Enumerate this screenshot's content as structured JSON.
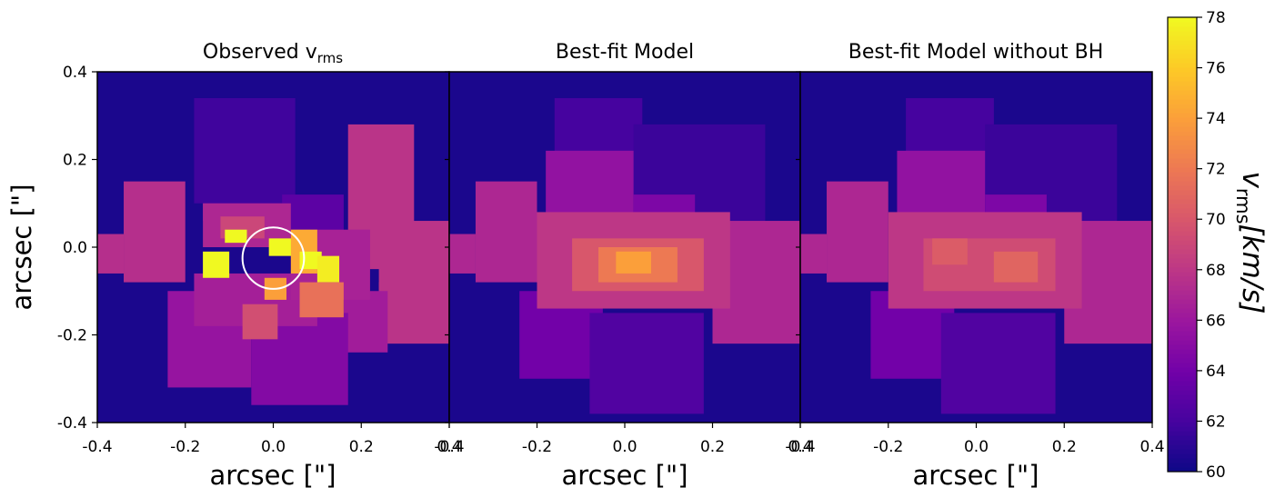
{
  "chart_data": [
    {
      "type": "heatmap",
      "title": "Observed v",
      "title_sub": "rms",
      "xlabel": "arcsec [\"]",
      "ylabel": "arcsec [\"]",
      "xlim": [
        -0.4,
        0.4
      ],
      "ylim": [
        -0.4,
        0.4
      ],
      "xticks": [
        "-0.4",
        "-0.2",
        "0.0",
        "0.2",
        "0.4"
      ],
      "yticks": [
        "0.4",
        "0.2",
        "0.0",
        "-0.2",
        "-0.4"
      ],
      "background_value": 60.5,
      "regions": [
        {
          "x0": -0.16,
          "x1": 0.04,
          "y0": 0.06,
          "y1": 0.24,
          "v": 64.5
        },
        {
          "x0": -0.34,
          "x1": -0.2,
          "y0": -0.08,
          "y1": 0.15,
          "v": 67.5
        },
        {
          "x0": -0.4,
          "x1": -0.34,
          "y0": -0.06,
          "y1": 0.03,
          "v": 67.5
        },
        {
          "x0": -0.18,
          "x1": 0.05,
          "y0": 0.1,
          "y1": 0.34,
          "v": 61.8
        },
        {
          "x0": 0.02,
          "x1": 0.16,
          "y0": 0.0,
          "y1": 0.12,
          "v": 63.0
        },
        {
          "x0": 0.17,
          "x1": 0.32,
          "y0": -0.05,
          "y1": 0.28,
          "v": 67.8
        },
        {
          "x0": 0.24,
          "x1": 0.4,
          "y0": -0.1,
          "y1": 0.06,
          "v": 67.8
        },
        {
          "x0": 0.24,
          "x1": 0.4,
          "y0": -0.22,
          "y1": -0.08,
          "v": 67.8
        },
        {
          "x0": 0.16,
          "x1": 0.26,
          "y0": -0.24,
          "y1": -0.1,
          "v": 66.3
        },
        {
          "x0": -0.24,
          "x1": -0.05,
          "y0": -0.32,
          "y1": -0.1,
          "v": 65.7
        },
        {
          "x0": -0.05,
          "x1": 0.17,
          "y0": -0.36,
          "y1": -0.15,
          "v": 64.8
        },
        {
          "x0": -0.16,
          "x1": 0.04,
          "y0": 0.0,
          "y1": 0.1,
          "v": 67.0
        },
        {
          "x0": -0.18,
          "x1": 0.1,
          "y0": -0.18,
          "y1": -0.06,
          "v": 66.5
        },
        {
          "x0": 0.04,
          "x1": 0.22,
          "y0": -0.12,
          "y1": 0.04,
          "v": 66.7
        },
        {
          "x0": -0.12,
          "x1": -0.02,
          "y0": 0.02,
          "y1": 0.07,
          "v": 69.0
        },
        {
          "x0": -0.11,
          "x1": -0.06,
          "y0": 0.01,
          "y1": 0.04,
          "v": 78.0
        },
        {
          "x0": -0.16,
          "x1": -0.1,
          "y0": -0.07,
          "y1": -0.01,
          "v": 78.0
        },
        {
          "x0": -0.01,
          "x1": 0.06,
          "y0": -0.02,
          "y1": 0.02,
          "v": 78.0
        },
        {
          "x0": 0.04,
          "x1": 0.1,
          "y0": -0.06,
          "y1": 0.04,
          "v": 74.5
        },
        {
          "x0": 0.06,
          "x1": 0.11,
          "y0": -0.05,
          "y1": -0.01,
          "v": 78.0
        },
        {
          "x0": 0.1,
          "x1": 0.15,
          "y0": -0.08,
          "y1": -0.02,
          "v": 77.5
        },
        {
          "x0": 0.06,
          "x1": 0.16,
          "y0": -0.16,
          "y1": -0.08,
          "v": 71.5
        },
        {
          "x0": -0.07,
          "x1": 0.01,
          "y0": -0.21,
          "y1": -0.13,
          "v": 69.5
        },
        {
          "x0": -0.02,
          "x1": 0.03,
          "y0": -0.12,
          "y1": -0.07,
          "v": 74.0
        }
      ],
      "annotations": [
        {
          "shape": "circle",
          "cx": 0.0,
          "cy": -0.025,
          "r": 0.07,
          "color": "#ffffff"
        }
      ]
    },
    {
      "type": "heatmap",
      "title": "Best-fit Model",
      "xlabel": "arcsec [\"]",
      "xlim": [
        -0.4,
        0.4
      ],
      "ylim": [
        -0.4,
        0.4
      ],
      "xticks": [
        "-0.4",
        "-0.2",
        "0.0",
        "0.2",
        "0.4"
      ],
      "background_value": 60.5,
      "regions": [
        {
          "x0": -0.16,
          "x1": 0.04,
          "y0": 0.08,
          "y1": 0.34,
          "v": 62.0
        },
        {
          "x0": 0.02,
          "x1": 0.32,
          "y0": 0.04,
          "y1": 0.28,
          "v": 61.6
        },
        {
          "x0": -0.34,
          "x1": -0.2,
          "y0": -0.08,
          "y1": 0.15,
          "v": 67.0
        },
        {
          "x0": -0.4,
          "x1": -0.34,
          "y0": -0.06,
          "y1": 0.03,
          "v": 67.0
        },
        {
          "x0": -0.18,
          "x1": 0.02,
          "y0": 0.04,
          "y1": 0.22,
          "v": 65.5
        },
        {
          "x0": 0.02,
          "x1": 0.16,
          "y0": 0.0,
          "y1": 0.12,
          "v": 64.5
        },
        {
          "x0": 0.2,
          "x1": 0.4,
          "y0": -0.22,
          "y1": 0.06,
          "v": 67.0
        },
        {
          "x0": -0.24,
          "x1": -0.05,
          "y0": -0.3,
          "y1": -0.1,
          "v": 64.0
        },
        {
          "x0": -0.08,
          "x1": 0.18,
          "y0": -0.38,
          "y1": -0.15,
          "v": 62.5
        },
        {
          "x0": -0.2,
          "x1": 0.24,
          "y0": -0.14,
          "y1": 0.08,
          "v": 68.0
        },
        {
          "x0": -0.12,
          "x1": 0.18,
          "y0": -0.1,
          "y1": 0.02,
          "v": 70.0
        },
        {
          "x0": -0.06,
          "x1": 0.12,
          "y0": -0.08,
          "y1": 0.0,
          "v": 72.0
        },
        {
          "x0": -0.02,
          "x1": 0.06,
          "y0": -0.06,
          "y1": -0.01,
          "v": 74.0
        }
      ]
    },
    {
      "type": "heatmap",
      "title": "Best-fit Model without BH",
      "xlabel": "arcsec [\"]",
      "xlim": [
        -0.4,
        0.4
      ],
      "ylim": [
        -0.4,
        0.4
      ],
      "xticks": [
        "-0.4",
        "-0.2",
        "0.0",
        "0.2",
        "0.4"
      ],
      "background_value": 60.5,
      "regions": [
        {
          "x0": -0.16,
          "x1": 0.04,
          "y0": 0.08,
          "y1": 0.34,
          "v": 62.0
        },
        {
          "x0": 0.02,
          "x1": 0.32,
          "y0": 0.04,
          "y1": 0.28,
          "v": 61.6
        },
        {
          "x0": -0.34,
          "x1": -0.2,
          "y0": -0.08,
          "y1": 0.15,
          "v": 67.0
        },
        {
          "x0": -0.4,
          "x1": -0.34,
          "y0": -0.06,
          "y1": 0.03,
          "v": 67.0
        },
        {
          "x0": -0.18,
          "x1": 0.02,
          "y0": 0.04,
          "y1": 0.22,
          "v": 65.5
        },
        {
          "x0": 0.02,
          "x1": 0.16,
          "y0": 0.0,
          "y1": 0.12,
          "v": 64.5
        },
        {
          "x0": 0.2,
          "x1": 0.4,
          "y0": -0.22,
          "y1": 0.06,
          "v": 67.0
        },
        {
          "x0": -0.24,
          "x1": -0.05,
          "y0": -0.3,
          "y1": -0.1,
          "v": 64.0
        },
        {
          "x0": -0.08,
          "x1": 0.18,
          "y0": -0.38,
          "y1": -0.15,
          "v": 62.5
        },
        {
          "x0": -0.2,
          "x1": 0.24,
          "y0": -0.14,
          "y1": 0.08,
          "v": 68.0
        },
        {
          "x0": -0.12,
          "x1": 0.18,
          "y0": -0.1,
          "y1": 0.02,
          "v": 69.3
        },
        {
          "x0": -0.1,
          "x1": -0.02,
          "y0": -0.04,
          "y1": 0.02,
          "v": 70.3
        },
        {
          "x0": 0.04,
          "x1": 0.14,
          "y0": -0.08,
          "y1": -0.01,
          "v": 70.8
        }
      ]
    }
  ],
  "colorbar": {
    "label": "v",
    "label_sub": "rms",
    "label_units": "[km/s]",
    "ticks": [
      "60",
      "62",
      "64",
      "66",
      "68",
      "70",
      "72",
      "74",
      "76",
      "78"
    ],
    "vmin": 60,
    "vmax": 78,
    "colormap": "plasma"
  }
}
